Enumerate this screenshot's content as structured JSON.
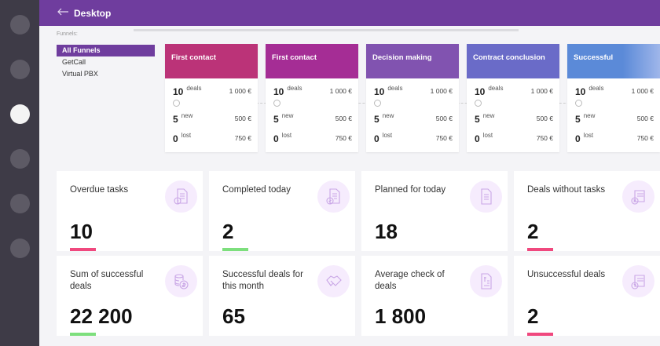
{
  "header": {
    "title": "Desktop"
  },
  "sidebar": {
    "items": [
      "nav-1",
      "nav-2",
      "nav-3",
      "nav-4",
      "nav-5",
      "nav-6"
    ],
    "active_index": 2
  },
  "funnels": {
    "label": "Funnels:",
    "items": [
      "All Funnels",
      "GetCall",
      "Virtual PBX"
    ],
    "selected": "All Funnels"
  },
  "stages": [
    {
      "title": "First contact",
      "color": "#bb3378",
      "deals": "10",
      "deals_label": "deals",
      "deals_amount": "1 000 €",
      "new": "5",
      "new_label": "new",
      "new_amount": "500 €",
      "lost": "0",
      "lost_label": "lost",
      "lost_amount": "750 €"
    },
    {
      "title": "First contact",
      "color": "#a52d95",
      "deals": "10",
      "deals_label": "deals",
      "deals_amount": "1 000 €",
      "new": "5",
      "new_label": "new",
      "new_amount": "500 €",
      "lost": "0",
      "lost_label": "lost",
      "lost_amount": "750 €"
    },
    {
      "title": "Decision making",
      "color": "#8153b0",
      "deals": "10",
      "deals_label": "deals",
      "deals_amount": "1 000 €",
      "new": "5",
      "new_label": "new",
      "new_amount": "500 €",
      "lost": "0",
      "lost_label": "lost",
      "lost_amount": "750 €"
    },
    {
      "title": "Contract conclusion",
      "color": "#6a6bc8",
      "deals": "10",
      "deals_label": "deals",
      "deals_amount": "1 000 €",
      "new": "5",
      "new_label": "new",
      "new_amount": "500 €",
      "lost": "0",
      "lost_label": "lost",
      "lost_amount": "750 €"
    },
    {
      "title": "Successful",
      "color": "#5b8ad8",
      "deals": "10",
      "deals_label": "deals",
      "deals_amount": "1 000 €",
      "new": "5",
      "new_label": "new",
      "new_amount": "500 €",
      "lost": "0",
      "lost_label": "lost",
      "lost_amount": "750 €"
    }
  ],
  "stats": [
    {
      "label": "Overdue tasks",
      "value": "10",
      "bar": "#f0487e",
      "icon": "document-clock-icon"
    },
    {
      "label": "Completed today",
      "value": "2",
      "bar": "#7ddf7d",
      "icon": "document-check-icon"
    },
    {
      "label": "Planned for today",
      "value": "18",
      "bar": "",
      "icon": "document-icon"
    },
    {
      "label": "Deals without tasks",
      "value": "2",
      "bar": "#f0487e",
      "icon": "document-cross-icon"
    },
    {
      "label": "Sum of successful deals",
      "value": "22 200",
      "bar": "#7ddf7d",
      "icon": "coins-dollar-icon"
    },
    {
      "label": "Successful deals for this month",
      "value": "65",
      "bar": "",
      "icon": "handshake-icon"
    },
    {
      "label": "Average check of deals",
      "value": "1 800",
      "bar": "",
      "icon": "document-dollar-icon"
    },
    {
      "label": "Unsuccessful deals",
      "value": "2",
      "bar": "#f0487e",
      "icon": "document-question-icon"
    }
  ]
}
